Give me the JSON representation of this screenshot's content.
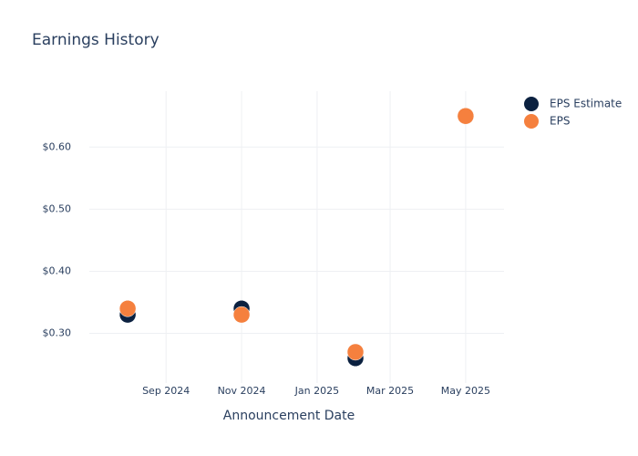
{
  "chart_data": {
    "type": "scatter",
    "title": "Earnings History",
    "x_label": "Announcement Date",
    "x": [
      "2024-08",
      "2024-11",
      "2025-02",
      "2025-05"
    ],
    "series": [
      {
        "name": "EPS Estimate",
        "color": "#0b2140",
        "values": [
          0.33,
          0.34,
          0.26,
          0.65
        ]
      },
      {
        "name": "EPS",
        "color": "#f5803e",
        "values": [
          0.34,
          0.33,
          0.27,
          0.65
        ]
      }
    ],
    "xlim": [
      "2024-07",
      "2025-06"
    ],
    "xticks": [
      {
        "value": "2024-09",
        "label": "Sep 2024"
      },
      {
        "value": "2024-11",
        "label": "Nov 2024"
      },
      {
        "value": "2025-01",
        "label": "Jan 2025"
      },
      {
        "value": "2025-03",
        "label": "Mar 2025"
      },
      {
        "value": "2025-05",
        "label": "May 2025"
      }
    ],
    "ylim": [
      0.22,
      0.69
    ],
    "yticks": [
      {
        "value": 0.3,
        "label": "$0.30"
      },
      {
        "value": 0.4,
        "label": "$0.40"
      },
      {
        "value": 0.5,
        "label": "$0.50"
      },
      {
        "value": 0.6,
        "label": "$0.60"
      }
    ],
    "grid": true,
    "legend": "top-right"
  }
}
